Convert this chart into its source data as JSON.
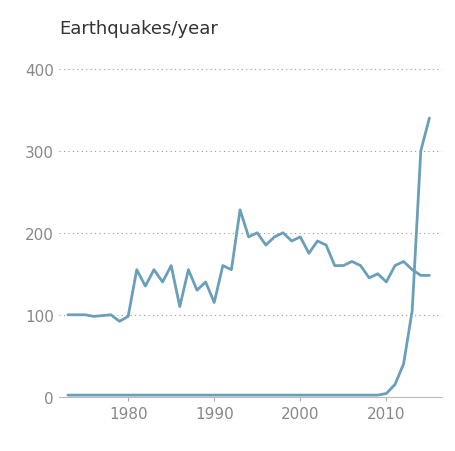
{
  "title": "Earthquakes/year",
  "line_color": "#6a9fba",
  "background_color": "#ffffff",
  "ylim": [
    0,
    430
  ],
  "yticks": [
    0,
    100,
    200,
    300,
    400
  ],
  "xticks": [
    1980,
    1990,
    2000,
    2010
  ],
  "xlim": [
    1972,
    2016.5
  ],
  "years": [
    1973,
    1974,
    1975,
    1976,
    1977,
    1978,
    1979,
    1980,
    1981,
    1982,
    1983,
    1984,
    1985,
    1986,
    1987,
    1988,
    1989,
    1990,
    1991,
    1992,
    1993,
    1994,
    1995,
    1996,
    1997,
    1998,
    1999,
    2000,
    2001,
    2002,
    2003,
    2004,
    2005,
    2006,
    2007,
    2008,
    2009,
    2010,
    2011,
    2012,
    2013,
    2014,
    2015
  ],
  "upper_values": [
    100,
    100,
    100,
    98,
    99,
    100,
    92,
    98,
    155,
    135,
    155,
    140,
    160,
    110,
    155,
    130,
    140,
    115,
    160,
    155,
    228,
    195,
    200,
    185,
    195,
    200,
    190,
    195,
    175,
    190,
    185,
    160,
    160,
    165,
    160,
    145,
    150,
    140,
    160,
    165,
    155,
    148,
    148
  ],
  "lower_values": [
    2,
    2,
    2,
    2,
    2,
    2,
    2,
    2,
    2,
    2,
    2,
    2,
    2,
    2,
    2,
    2,
    2,
    2,
    2,
    2,
    2,
    2,
    2,
    2,
    2,
    2,
    2,
    2,
    2,
    2,
    2,
    2,
    2,
    2,
    2,
    2,
    2,
    4,
    15,
    40,
    105,
    300,
    340
  ],
  "grid_color": "#999999",
  "tick_label_color": "#888888",
  "title_fontsize": 13,
  "tick_fontsize": 11,
  "linewidth": 2.0
}
